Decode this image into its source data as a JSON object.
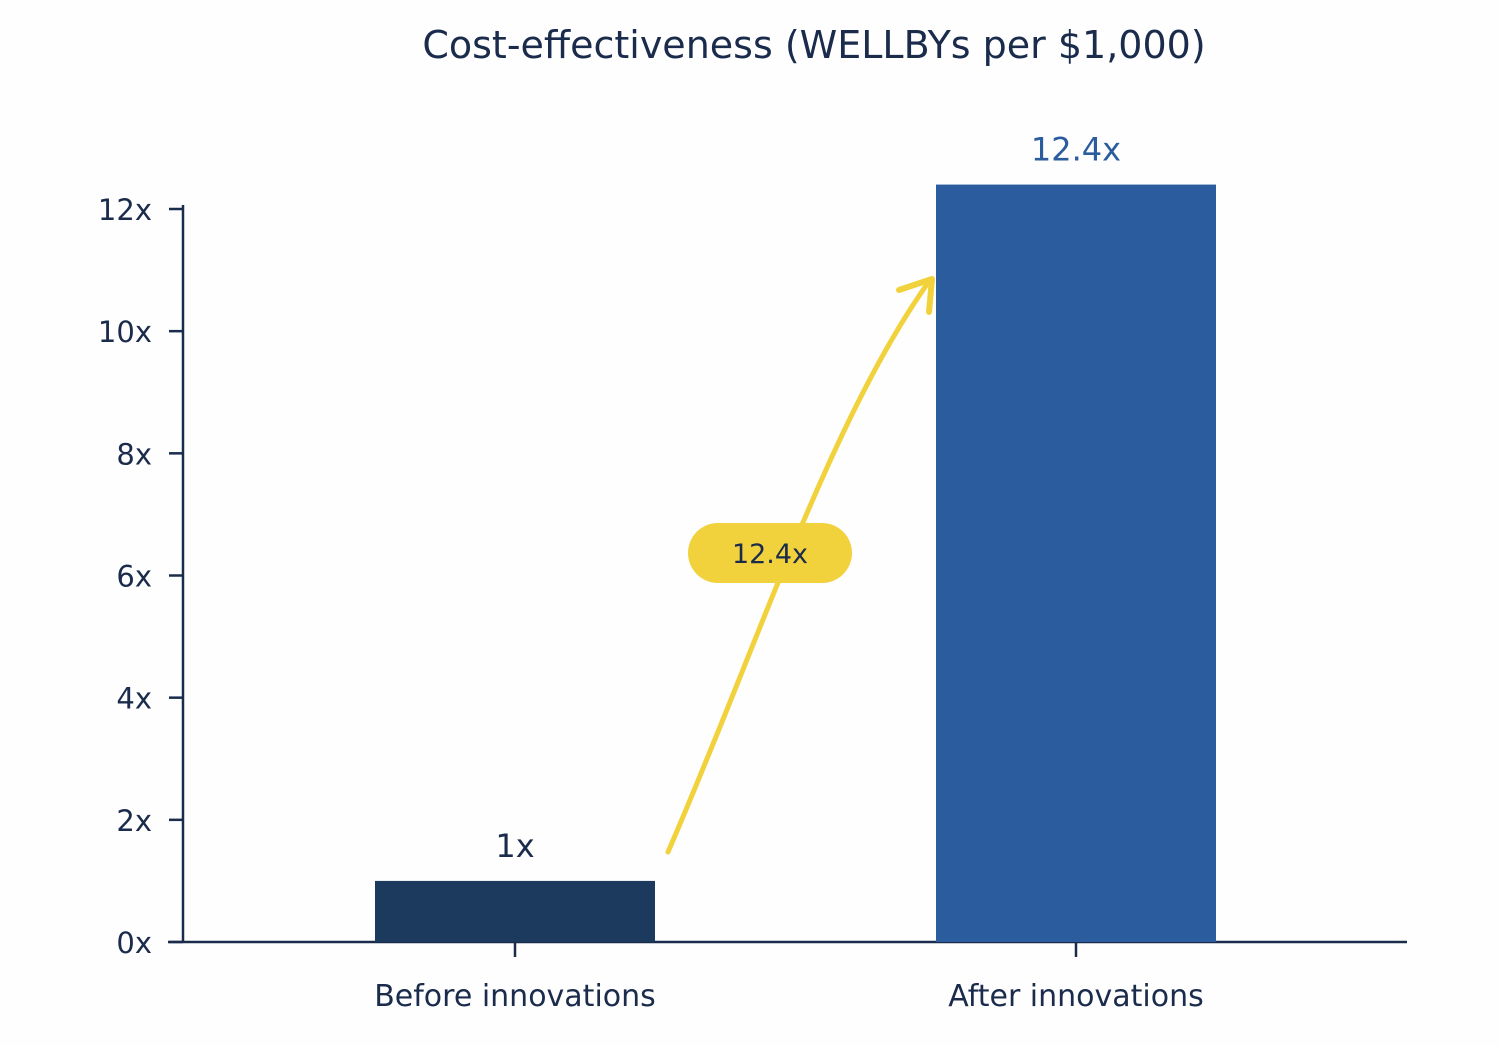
{
  "chart_data": {
    "type": "bar",
    "title": "Cost-effectiveness (WELLBYs per $1,000)",
    "xlabel": "",
    "ylabel": "",
    "categories": [
      "Before innovations",
      "After innovations"
    ],
    "values": [
      1,
      12.4
    ],
    "data_labels": [
      "1x",
      "12.4x"
    ],
    "ylim": [
      0,
      12
    ],
    "yticks": [
      0,
      2,
      4,
      6,
      8,
      10,
      12
    ],
    "ytick_labels": [
      "0x",
      "2x",
      "4x",
      "6x",
      "8x",
      "10x",
      "12x"
    ],
    "grid": false,
    "annotation": {
      "label": "12.4x",
      "type": "arrow from first bar to second bar"
    },
    "colors": {
      "bars": [
        "#1c3a5e",
        "#2b5c9e"
      ],
      "data_labels": [
        "#1a2b4c",
        "#2b5c9e"
      ],
      "axis": "#1a2b4c",
      "annotation": "#f1d23c"
    }
  }
}
